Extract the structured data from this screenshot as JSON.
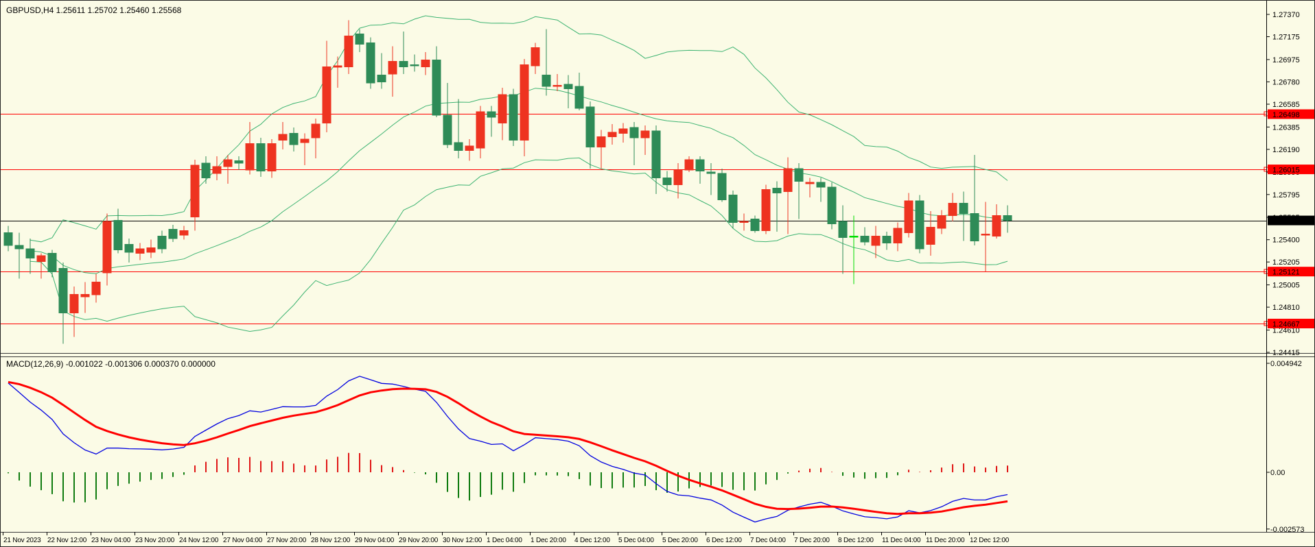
{
  "window": {
    "title": "GBPUSD,H4  1.25611 1.25702 1.25460 1.25568"
  },
  "macd_panel": {
    "label": "MACD(12,26,9) -0.001022 -0.001306 0.000370 0.000000",
    "axis_ticks": [
      {
        "label": "0.004942",
        "value": 0.004942
      },
      {
        "label": "0.00",
        "value": 0.0
      },
      {
        "label": "-0.002573",
        "value": -0.002573
      }
    ]
  },
  "price_axis": {
    "ticks": [
      "1.27370",
      "1.27175",
      "1.26975",
      "1.26780",
      "1.26585",
      "1.26385",
      "1.26190",
      "1.25990",
      "1.25795",
      "1.25595",
      "1.25400",
      "1.25205",
      "1.25005",
      "1.24810",
      "1.24610",
      "1.24415"
    ],
    "level_badges": [
      {
        "label": "1.26498",
        "value": 1.26498
      },
      {
        "label": "1.26015",
        "value": 1.26015
      },
      {
        "label": "1.25121",
        "value": 1.25121
      },
      {
        "label": "1.24667",
        "value": 1.24667
      }
    ],
    "current_price_badge": {
      "label": "1.25568",
      "value": 1.25568
    }
  },
  "time_axis": {
    "labels": [
      "21 Nov 2023",
      "22 Nov 12:00",
      "23 Nov 04:00",
      "23 Nov 20:00",
      "24 Nov 12:00",
      "27 Nov 04:00",
      "27 Nov 20:00",
      "28 Nov 12:00",
      "29 Nov 04:00",
      "29 Nov 20:00",
      "30 Nov 12:00",
      "1 Dec 04:00",
      "1 Dec 20:00",
      "4 Dec 12:00",
      "5 Dec 04:00",
      "5 Dec 20:00",
      "6 Dec 12:00",
      "7 Dec 04:00",
      "7 Dec 20:00",
      "8 Dec 12:00",
      "11 Dec 04:00",
      "11 Dec 20:00",
      "12 Dec 12:00"
    ]
  },
  "colors": {
    "background": "#fbfbe6",
    "bull_candle": "#ee3320",
    "bear_candle": "#2e8b57",
    "lime_candle": "#00dd00",
    "bollinger": "#3cb371",
    "level_line": "#ff0000",
    "current_price_line": "#000000",
    "badge_red": "#ff0000",
    "badge_black": "#000000",
    "macd_line": "#0000e0",
    "signal_line": "#ff0000",
    "hist_positive": "#e01515",
    "hist_negative": "#0f7b0f",
    "axis_text": "#000000"
  },
  "chart_data": {
    "type": "candlestick",
    "symbol": "GBPUSD",
    "timeframe": "H4",
    "title": "GBPUSD,H4  1.25611 1.25702 1.25460 1.25568",
    "price_range": {
      "top": 1.2737,
      "bottom": 1.24415
    },
    "macd_range": {
      "top": 0.004942,
      "bottom": -0.002573
    },
    "horizontal_levels": [
      1.26498,
      1.26015,
      1.25121,
      1.24667
    ],
    "current_price": 1.25568,
    "current_bar": {
      "open": 1.25611,
      "high": 1.25702,
      "low": 1.2546,
      "close": 1.25568
    },
    "indicators": {
      "bollinger": {
        "period": 20,
        "deviation": 2,
        "derived_from_candles": true
      },
      "macd": {
        "fast": 12,
        "slow": 26,
        "signal": 9,
        "derived_from_candles": true,
        "current_values": {
          "macd": -0.001022,
          "signal": -0.001306,
          "histogram": 0.00037,
          "extra": 0.0
        }
      }
    },
    "candles": [
      {
        "t": "21 Nov 20:00",
        "o": 1.2546,
        "h": 1.2552,
        "l": 1.253,
        "c": 1.2535
      },
      {
        "t": "22 Nov 00:00",
        "o": 1.2535,
        "h": 1.2546,
        "l": 1.2506,
        "c": 1.2532
      },
      {
        "t": "22 Nov 04:00",
        "o": 1.2532,
        "h": 1.2541,
        "l": 1.251,
        "c": 1.2524
      },
      {
        "t": "22 Nov 08:00",
        "o": 1.2521,
        "h": 1.2528,
        "l": 1.2506,
        "c": 1.2526
      },
      {
        "t": "22 Nov 12:00",
        "o": 1.2528,
        "h": 1.2531,
        "l": 1.2507,
        "c": 1.2512
      },
      {
        "t": "22 Nov 16:00",
        "o": 1.2515,
        "h": 1.252,
        "l": 1.2449,
        "c": 1.2476
      },
      {
        "t": "22 Nov 20:00",
        "o": 1.2476,
        "h": 1.2499,
        "l": 1.2455,
        "c": 1.2492
      },
      {
        "t": "23 Nov 00:00",
        "o": 1.249,
        "h": 1.2503,
        "l": 1.2476,
        "c": 1.2492
      },
      {
        "t": "23 Nov 04:00",
        "o": 1.2492,
        "h": 1.251,
        "l": 1.2485,
        "c": 1.2503
      },
      {
        "t": "23 Nov 08:00",
        "o": 1.2511,
        "h": 1.2563,
        "l": 1.25,
        "c": 1.2556
      },
      {
        "t": "23 Nov 12:00",
        "o": 1.2557,
        "h": 1.2567,
        "l": 1.2528,
        "c": 1.2531
      },
      {
        "t": "23 Nov 16:00",
        "o": 1.2536,
        "h": 1.2541,
        "l": 1.252,
        "c": 1.2529
      },
      {
        "t": "23 Nov 20:00",
        "o": 1.2528,
        "h": 1.2537,
        "l": 1.2522,
        "c": 1.2532
      },
      {
        "t": "24 Nov 00:00",
        "o": 1.2529,
        "h": 1.254,
        "l": 1.2524,
        "c": 1.2533
      },
      {
        "t": "24 Nov 04:00",
        "o": 1.2543,
        "h": 1.2548,
        "l": 1.2528,
        "c": 1.2532
      },
      {
        "t": "24 Nov 08:00",
        "o": 1.2549,
        "h": 1.2553,
        "l": 1.2538,
        "c": 1.2541
      },
      {
        "t": "24 Nov 12:00",
        "o": 1.2544,
        "h": 1.2552,
        "l": 1.254,
        "c": 1.2548
      },
      {
        "t": "24 Nov 16:00",
        "o": 1.256,
        "h": 1.261,
        "l": 1.2548,
        "c": 1.2605
      },
      {
        "t": "24 Nov 20:00",
        "o": 1.2607,
        "h": 1.2613,
        "l": 1.2589,
        "c": 1.2594
      },
      {
        "t": "27 Nov 00:00",
        "o": 1.2598,
        "h": 1.2613,
        "l": 1.2592,
        "c": 1.2604
      },
      {
        "t": "27 Nov 04:00",
        "o": 1.2604,
        "h": 1.2614,
        "l": 1.2589,
        "c": 1.261
      },
      {
        "t": "27 Nov 08:00",
        "o": 1.2609,
        "h": 1.2613,
        "l": 1.2601,
        "c": 1.2607
      },
      {
        "t": "27 Nov 12:00",
        "o": 1.2601,
        "h": 1.2643,
        "l": 1.2597,
        "c": 1.2624
      },
      {
        "t": "27 Nov 16:00",
        "o": 1.2624,
        "h": 1.2629,
        "l": 1.2595,
        "c": 1.26
      },
      {
        "t": "27 Nov 20:00",
        "o": 1.26,
        "h": 1.2628,
        "l": 1.2594,
        "c": 1.2624
      },
      {
        "t": "28 Nov 00:00",
        "o": 1.2627,
        "h": 1.2643,
        "l": 1.2619,
        "c": 1.2632
      },
      {
        "t": "28 Nov 04:00",
        "o": 1.2633,
        "h": 1.2638,
        "l": 1.2617,
        "c": 1.2623
      },
      {
        "t": "28 Nov 08:00",
        "o": 1.2625,
        "h": 1.2633,
        "l": 1.2605,
        "c": 1.2628
      },
      {
        "t": "28 Nov 12:00",
        "o": 1.2629,
        "h": 1.2646,
        "l": 1.2611,
        "c": 1.2641
      },
      {
        "t": "28 Nov 16:00",
        "o": 1.2642,
        "h": 1.2714,
        "l": 1.2634,
        "c": 1.2691
      },
      {
        "t": "28 Nov 20:00",
        "o": 1.2691,
        "h": 1.27,
        "l": 1.2673,
        "c": 1.2692
      },
      {
        "t": "29 Nov 00:00",
        "o": 1.2691,
        "h": 1.2732,
        "l": 1.2685,
        "c": 1.2718
      },
      {
        "t": "29 Nov 04:00",
        "o": 1.272,
        "h": 1.2724,
        "l": 1.2704,
        "c": 1.2711
      },
      {
        "t": "29 Nov 08:00",
        "o": 1.2712,
        "h": 1.2717,
        "l": 1.2672,
        "c": 1.2677
      },
      {
        "t": "29 Nov 12:00",
        "o": 1.2684,
        "h": 1.2703,
        "l": 1.2672,
        "c": 1.2678
      },
      {
        "t": "29 Nov 16:00",
        "o": 1.2685,
        "h": 1.2709,
        "l": 1.2665,
        "c": 1.2696
      },
      {
        "t": "29 Nov 20:00",
        "o": 1.2696,
        "h": 1.2722,
        "l": 1.2685,
        "c": 1.2691
      },
      {
        "t": "30 Nov 00:00",
        "o": 1.2693,
        "h": 1.2702,
        "l": 1.2687,
        "c": 1.2692
      },
      {
        "t": "30 Nov 04:00",
        "o": 1.2691,
        "h": 1.2704,
        "l": 1.2684,
        "c": 1.2697
      },
      {
        "t": "30 Nov 08:00",
        "o": 1.2697,
        "h": 1.2709,
        "l": 1.2647,
        "c": 1.2649
      },
      {
        "t": "30 Nov 12:00",
        "o": 1.2649,
        "h": 1.2677,
        "l": 1.262,
        "c": 1.2623
      },
      {
        "t": "30 Nov 16:00",
        "o": 1.2625,
        "h": 1.2663,
        "l": 1.2611,
        "c": 1.2618
      },
      {
        "t": "30 Nov 20:00",
        "o": 1.2618,
        "h": 1.2628,
        "l": 1.2609,
        "c": 1.2622
      },
      {
        "t": "1 Dec 00:00",
        "o": 1.262,
        "h": 1.2657,
        "l": 1.2611,
        "c": 1.2652
      },
      {
        "t": "1 Dec 04:00",
        "o": 1.2652,
        "h": 1.2657,
        "l": 1.263,
        "c": 1.2647
      },
      {
        "t": "1 Dec 08:00",
        "o": 1.2642,
        "h": 1.2673,
        "l": 1.2627,
        "c": 1.2667
      },
      {
        "t": "1 Dec 12:00",
        "o": 1.2667,
        "h": 1.2672,
        "l": 1.2622,
        "c": 1.2627
      },
      {
        "t": "1 Dec 16:00",
        "o": 1.2627,
        "h": 1.2698,
        "l": 1.2613,
        "c": 1.2693
      },
      {
        "t": "1 Dec 20:00",
        "o": 1.2692,
        "h": 1.2712,
        "l": 1.2685,
        "c": 1.2708
      },
      {
        "t": "4 Dec 00:00",
        "o": 1.2684,
        "h": 1.2724,
        "l": 1.2666,
        "c": 1.2674
      },
      {
        "t": "4 Dec 04:00",
        "o": 1.2674,
        "h": 1.2685,
        "l": 1.267,
        "c": 1.2675
      },
      {
        "t": "4 Dec 08:00",
        "o": 1.2676,
        "h": 1.2684,
        "l": 1.2655,
        "c": 1.2672
      },
      {
        "t": "4 Dec 12:00",
        "o": 1.2674,
        "h": 1.2686,
        "l": 1.2653,
        "c": 1.2655
      },
      {
        "t": "4 Dec 16:00",
        "o": 1.2656,
        "h": 1.2661,
        "l": 1.2602,
        "c": 1.2621
      },
      {
        "t": "4 Dec 20:00",
        "o": 1.2621,
        "h": 1.2636,
        "l": 1.2602,
        "c": 1.263
      },
      {
        "t": "5 Dec 00:00",
        "o": 1.263,
        "h": 1.2641,
        "l": 1.2623,
        "c": 1.2634
      },
      {
        "t": "5 Dec 04:00",
        "o": 1.2633,
        "h": 1.2642,
        "l": 1.2625,
        "c": 1.2637
      },
      {
        "t": "5 Dec 08:00",
        "o": 1.2638,
        "h": 1.2643,
        "l": 1.2605,
        "c": 1.2629
      },
      {
        "t": "5 Dec 12:00",
        "o": 1.2629,
        "h": 1.264,
        "l": 1.2614,
        "c": 1.2635
      },
      {
        "t": "5 Dec 16:00",
        "o": 1.2635,
        "h": 1.264,
        "l": 1.258,
        "c": 1.2594
      },
      {
        "t": "5 Dec 20:00",
        "o": 1.2594,
        "h": 1.26,
        "l": 1.2582,
        "c": 1.2588
      },
      {
        "t": "6 Dec 00:00",
        "o": 1.2588,
        "h": 1.2607,
        "l": 1.2576,
        "c": 1.2601
      },
      {
        "t": "6 Dec 04:00",
        "o": 1.2601,
        "h": 1.2613,
        "l": 1.2599,
        "c": 1.261
      },
      {
        "t": "6 Dec 08:00",
        "o": 1.261,
        "h": 1.2613,
        "l": 1.2589,
        "c": 1.26
      },
      {
        "t": "6 Dec 12:00",
        "o": 1.2599,
        "h": 1.2607,
        "l": 1.2579,
        "c": 1.2598
      },
      {
        "t": "6 Dec 16:00",
        "o": 1.2598,
        "h": 1.2602,
        "l": 1.2573,
        "c": 1.2575
      },
      {
        "t": "6 Dec 20:00",
        "o": 1.2579,
        "h": 1.2583,
        "l": 1.255,
        "c": 1.2555
      },
      {
        "t": "7 Dec 00:00",
        "o": 1.2555,
        "h": 1.2563,
        "l": 1.2548,
        "c": 1.2556
      },
      {
        "t": "7 Dec 04:00",
        "o": 1.2558,
        "h": 1.2561,
        "l": 1.2546,
        "c": 1.2548
      },
      {
        "t": "7 Dec 08:00",
        "o": 1.2548,
        "h": 1.2588,
        "l": 1.2545,
        "c": 1.2584
      },
      {
        "t": "7 Dec 12:00",
        "o": 1.2585,
        "h": 1.2591,
        "l": 1.2547,
        "c": 1.2581
      },
      {
        "t": "7 Dec 16:00",
        "o": 1.2582,
        "h": 1.2612,
        "l": 1.2545,
        "c": 1.2602
      },
      {
        "t": "7 Dec 20:00",
        "o": 1.2602,
        "h": 1.2607,
        "l": 1.2558,
        "c": 1.2591
      },
      {
        "t": "8 Dec 00:00",
        "o": 1.2589,
        "h": 1.2594,
        "l": 1.2577,
        "c": 1.259
      },
      {
        "t": "8 Dec 04:00",
        "o": 1.259,
        "h": 1.2594,
        "l": 1.2573,
        "c": 1.2586
      },
      {
        "t": "8 Dec 08:00",
        "o": 1.2586,
        "h": 1.259,
        "l": 1.2549,
        "c": 1.2554
      },
      {
        "t": "8 Dec 12:00",
        "o": 1.2556,
        "h": 1.257,
        "l": 1.251,
        "c": 1.2542
      },
      {
        "t": "8 Dec 16:00",
        "o": 1.2543,
        "h": 1.2561,
        "l": 1.2501,
        "c": 1.2543,
        "k": "lime"
      },
      {
        "t": "8 Dec 20:00",
        "o": 1.2543,
        "h": 1.2551,
        "l": 1.2535,
        "c": 1.2538
      },
      {
        "t": "11 Dec 00:00",
        "o": 1.2535,
        "h": 1.2552,
        "l": 1.2524,
        "c": 1.2543
      },
      {
        "t": "11 Dec 04:00",
        "o": 1.2543,
        "h": 1.2547,
        "l": 1.2531,
        "c": 1.2537
      },
      {
        "t": "11 Dec 08:00",
        "o": 1.2537,
        "h": 1.2555,
        "l": 1.253,
        "c": 1.255
      },
      {
        "t": "11 Dec 12:00",
        "o": 1.2546,
        "h": 1.2581,
        "l": 1.2542,
        "c": 1.2574
      },
      {
        "t": "11 Dec 16:00",
        "o": 1.2574,
        "h": 1.2579,
        "l": 1.2528,
        "c": 1.2532
      },
      {
        "t": "11 Dec 20:00",
        "o": 1.2536,
        "h": 1.2565,
        "l": 1.2526,
        "c": 1.2551
      },
      {
        "t": "12 Dec 00:00",
        "o": 1.255,
        "h": 1.2566,
        "l": 1.2545,
        "c": 1.2561
      },
      {
        "t": "12 Dec 04:00",
        "o": 1.2561,
        "h": 1.2581,
        "l": 1.2556,
        "c": 1.2572
      },
      {
        "t": "12 Dec 08:00",
        "o": 1.2572,
        "h": 1.2582,
        "l": 1.2539,
        "c": 1.2563
      },
      {
        "t": "12 Dec 12:00",
        "o": 1.2563,
        "h": 1.2614,
        "l": 1.2535,
        "c": 1.2539
      },
      {
        "t": "12 Dec 16:00",
        "o": 1.2544,
        "h": 1.2573,
        "l": 1.2512,
        "c": 1.2545
      },
      {
        "t": "12 Dec 20:00",
        "o": 1.2543,
        "h": 1.2571,
        "l": 1.2541,
        "c": 1.2561
      },
      {
        "t": "13 Dec 00:00",
        "o": 1.25611,
        "h": 1.25702,
        "l": 1.2546,
        "c": 1.25568
      }
    ]
  }
}
